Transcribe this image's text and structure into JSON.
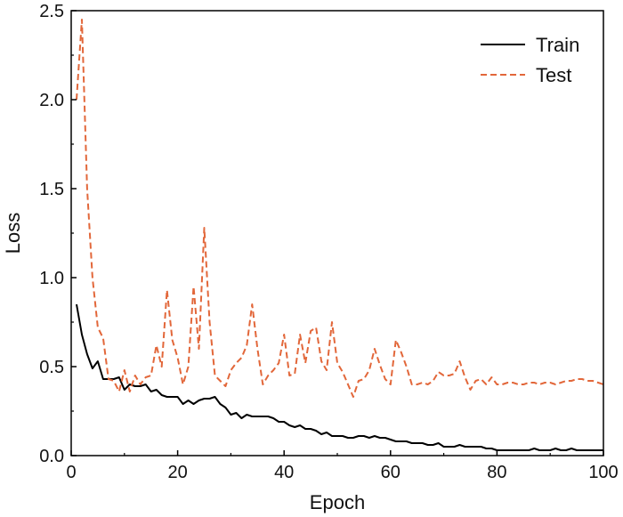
{
  "chart_data": {
    "type": "line",
    "title": "",
    "xlabel": "Epoch",
    "ylabel": "Loss",
    "xlim": [
      0,
      100
    ],
    "ylim": [
      0,
      2.5
    ],
    "xticks": [
      0,
      20,
      40,
      60,
      80,
      100
    ],
    "yticks": [
      0.0,
      0.5,
      1.0,
      1.5,
      2.0,
      2.5
    ],
    "xtick_labels": [
      "0",
      "20",
      "40",
      "60",
      "80",
      "100"
    ],
    "ytick_labels": [
      "0.0",
      "0.5",
      "1.0",
      "1.5",
      "2.0",
      "2.5"
    ],
    "grid": false,
    "legend_position": "top-right",
    "series": [
      {
        "name": "Train",
        "color": "#000000",
        "style": "solid",
        "x": [
          1,
          2,
          3,
          4,
          5,
          6,
          7,
          8,
          9,
          10,
          11,
          12,
          13,
          14,
          15,
          16,
          17,
          18,
          19,
          20,
          21,
          22,
          23,
          24,
          25,
          26,
          27,
          28,
          29,
          30,
          31,
          32,
          33,
          34,
          35,
          36,
          37,
          38,
          39,
          40,
          41,
          42,
          43,
          44,
          45,
          46,
          47,
          48,
          49,
          50,
          51,
          52,
          53,
          54,
          55,
          56,
          57,
          58,
          59,
          60,
          61,
          62,
          63,
          64,
          65,
          66,
          67,
          68,
          69,
          70,
          71,
          72,
          73,
          74,
          75,
          76,
          77,
          78,
          79,
          80,
          81,
          82,
          83,
          84,
          85,
          86,
          87,
          88,
          89,
          90,
          91,
          92,
          93,
          94,
          95,
          96,
          97,
          98,
          99,
          100
        ],
        "values": [
          0.85,
          0.68,
          0.57,
          0.49,
          0.53,
          0.43,
          0.43,
          0.43,
          0.44,
          0.37,
          0.4,
          0.39,
          0.39,
          0.4,
          0.36,
          0.37,
          0.34,
          0.33,
          0.33,
          0.33,
          0.29,
          0.31,
          0.29,
          0.31,
          0.32,
          0.32,
          0.33,
          0.29,
          0.27,
          0.23,
          0.24,
          0.21,
          0.23,
          0.22,
          0.22,
          0.22,
          0.22,
          0.21,
          0.19,
          0.19,
          0.17,
          0.16,
          0.17,
          0.15,
          0.15,
          0.14,
          0.12,
          0.13,
          0.11,
          0.11,
          0.11,
          0.1,
          0.1,
          0.11,
          0.11,
          0.1,
          0.11,
          0.1,
          0.1,
          0.09,
          0.08,
          0.08,
          0.08,
          0.07,
          0.07,
          0.07,
          0.06,
          0.06,
          0.07,
          0.05,
          0.05,
          0.05,
          0.06,
          0.05,
          0.05,
          0.05,
          0.05,
          0.04,
          0.04,
          0.03,
          0.03,
          0.03,
          0.03,
          0.03,
          0.03,
          0.03,
          0.04,
          0.03,
          0.03,
          0.03,
          0.04,
          0.03,
          0.03,
          0.04,
          0.03,
          0.03,
          0.03,
          0.03,
          0.03,
          0.03
        ]
      },
      {
        "name": "Test",
        "color": "#e2673a",
        "style": "dashed",
        "x": [
          1,
          2,
          3,
          4,
          5,
          6,
          7,
          8,
          9,
          10,
          11,
          12,
          13,
          14,
          15,
          16,
          17,
          18,
          19,
          20,
          21,
          22,
          23,
          24,
          25,
          26,
          27,
          28,
          29,
          30,
          31,
          32,
          33,
          34,
          35,
          36,
          37,
          38,
          39,
          40,
          41,
          42,
          43,
          44,
          45,
          46,
          47,
          48,
          49,
          50,
          51,
          52,
          53,
          54,
          55,
          56,
          57,
          58,
          59,
          60,
          61,
          62,
          63,
          64,
          65,
          66,
          67,
          68,
          69,
          70,
          71,
          72,
          73,
          74,
          75,
          76,
          77,
          78,
          79,
          80,
          81,
          82,
          83,
          84,
          85,
          86,
          87,
          88,
          89,
          90,
          91,
          92,
          93,
          94,
          95,
          96,
          97,
          98,
          99,
          100
        ],
        "values": [
          2.0,
          2.45,
          1.5,
          1.0,
          0.72,
          0.66,
          0.43,
          0.42,
          0.36,
          0.48,
          0.36,
          0.45,
          0.4,
          0.44,
          0.45,
          0.62,
          0.5,
          0.93,
          0.65,
          0.55,
          0.4,
          0.5,
          0.95,
          0.6,
          1.28,
          0.75,
          0.45,
          0.42,
          0.39,
          0.48,
          0.52,
          0.55,
          0.62,
          0.85,
          0.6,
          0.4,
          0.45,
          0.48,
          0.52,
          0.68,
          0.45,
          0.46,
          0.68,
          0.52,
          0.7,
          0.72,
          0.53,
          0.48,
          0.75,
          0.52,
          0.47,
          0.4,
          0.33,
          0.42,
          0.43,
          0.48,
          0.6,
          0.51,
          0.43,
          0.4,
          0.65,
          0.58,
          0.5,
          0.4,
          0.4,
          0.41,
          0.4,
          0.42,
          0.47,
          0.45,
          0.45,
          0.46,
          0.53,
          0.44,
          0.37,
          0.42,
          0.43,
          0.4,
          0.44,
          0.4,
          0.4,
          0.41,
          0.41,
          0.4,
          0.4,
          0.41,
          0.41,
          0.4,
          0.41,
          0.41,
          0.4,
          0.41,
          0.42,
          0.42,
          0.43,
          0.43,
          0.42,
          0.42,
          0.41,
          0.4
        ]
      }
    ]
  }
}
